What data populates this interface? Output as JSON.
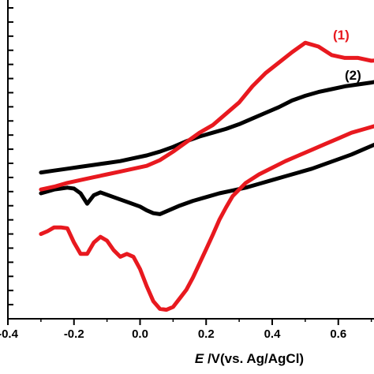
{
  "chart_data": {
    "type": "line",
    "xlabel_italic": "E",
    "xlabel_rest": " /V(vs. Ag/AgCl)",
    "xlim": [
      -0.4,
      0.75
    ],
    "xticks": [
      -0.4,
      -0.2,
      0.0,
      0.2,
      0.4,
      0.6
    ],
    "xtick_labels": [
      "-0.4",
      "-0.2",
      "0.0",
      "0.2",
      "0.4",
      "0.6"
    ],
    "y_tick_count": 23,
    "series": [
      {
        "name": "(1)",
        "color": "#e8191f",
        "x": [
          -0.3,
          -0.26,
          -0.22,
          -0.18,
          -0.14,
          -0.1,
          -0.06,
          -0.02,
          0.02,
          0.06,
          0.1,
          0.14,
          0.18,
          0.22,
          0.26,
          0.3,
          0.34,
          0.38,
          0.42,
          0.46,
          0.5,
          0.54,
          0.58,
          0.62,
          0.66,
          0.7,
          0.75,
          0.75,
          0.72,
          0.68,
          0.64,
          0.6,
          0.56,
          0.52,
          0.48,
          0.44,
          0.4,
          0.36,
          0.32,
          0.28,
          0.26,
          0.24,
          0.22,
          0.2,
          0.18,
          0.16,
          0.14,
          0.12,
          0.1,
          0.08,
          0.06,
          0.04,
          0.02,
          0.0,
          -0.02,
          -0.04,
          -0.06,
          -0.08,
          -0.1,
          -0.12,
          -0.14,
          -0.16,
          -0.18,
          -0.2,
          -0.22,
          -0.24,
          -0.26,
          -0.28,
          -0.3
        ],
        "y": [
          -16,
          -13,
          -9,
          -6,
          -3,
          0,
          3,
          6,
          9,
          15,
          24,
          34,
          44,
          52,
          64,
          76,
          93,
          107,
          118,
          129,
          139,
          135,
          126,
          123,
          123,
          120,
          121,
          56,
          52,
          48,
          44,
          38,
          32,
          26,
          20,
          14,
          7,
          0,
          -9,
          -23,
          -35,
          -48,
          -64,
          -79,
          -94,
          -109,
          -122,
          -131,
          -140,
          -143,
          -142,
          -134,
          -118,
          -100,
          -87,
          -84,
          -87,
          -80,
          -70,
          -66,
          -72,
          -84,
          -84,
          -72,
          -57,
          -56,
          -56,
          -60,
          -63
        ]
      },
      {
        "name": "(2)",
        "color": "#000000",
        "x": [
          -0.3,
          -0.26,
          -0.22,
          -0.18,
          -0.14,
          -0.1,
          -0.06,
          -0.02,
          0.02,
          0.06,
          0.1,
          0.14,
          0.18,
          0.22,
          0.26,
          0.3,
          0.34,
          0.38,
          0.42,
          0.46,
          0.5,
          0.54,
          0.58,
          0.62,
          0.66,
          0.7,
          0.75,
          0.75,
          0.72,
          0.68,
          0.64,
          0.6,
          0.56,
          0.52,
          0.48,
          0.44,
          0.4,
          0.36,
          0.32,
          0.28,
          0.24,
          0.2,
          0.16,
          0.12,
          0.08,
          0.06,
          0.04,
          0.02,
          0.0,
          -0.04,
          -0.08,
          -0.12,
          -0.14,
          -0.16,
          -0.18,
          -0.2,
          -0.22,
          -0.24,
          -0.26,
          -0.28,
          -0.3
        ],
        "y": [
          2,
          4,
          6,
          8,
          10,
          12,
          14,
          17,
          20,
          24,
          29,
          35,
          40,
          44,
          48,
          53,
          59,
          65,
          71,
          78,
          83,
          87,
          90,
          93,
          95,
          97,
          100,
          40,
          33,
          27,
          21,
          16,
          11,
          6,
          2,
          -2,
          -6,
          -10,
          -14,
          -17,
          -20,
          -24,
          -28,
          -33,
          -39,
          -42,
          -41,
          -38,
          -34,
          -29,
          -24,
          -19,
          -22,
          -31,
          -20,
          -15,
          -14,
          -15,
          -16,
          -18,
          -20
        ]
      }
    ]
  }
}
